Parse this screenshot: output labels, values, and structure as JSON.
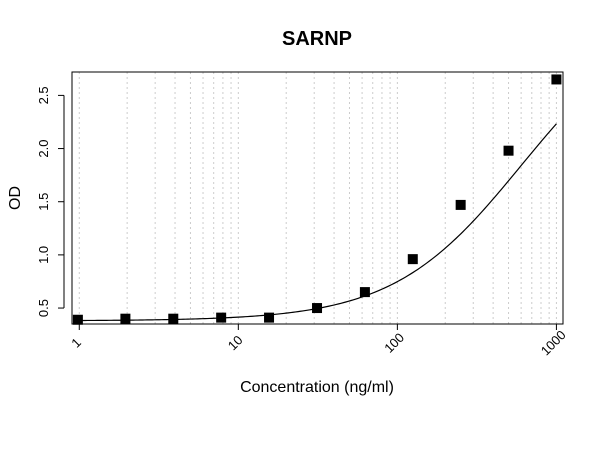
{
  "chart_data": {
    "type": "scatter",
    "title": "SARNP",
    "xlabel": "Concentration (ng/ml)",
    "ylabel": "OD",
    "x_scale": "log",
    "xlim": [
      0.9,
      1100
    ],
    "ylim": [
      0.35,
      2.72
    ],
    "x_ticks": [
      1,
      10,
      100,
      1000
    ],
    "x_tick_labels": [
      "1",
      "10",
      "100",
      "1000"
    ],
    "y_ticks": [
      0.5,
      1.0,
      1.5,
      2.0,
      2.5
    ],
    "y_tick_labels": [
      "0.5",
      "1.0",
      "1.5",
      "2.0",
      "2.5"
    ],
    "grid": "vertical dotted",
    "series": [
      {
        "marker": "filled-square",
        "x": [
          0.98,
          1.95,
          3.9,
          7.8,
          15.6,
          31.25,
          62.5,
          125,
          250,
          500,
          1000
        ],
        "y": [
          0.39,
          0.4,
          0.4,
          0.41,
          0.41,
          0.5,
          0.65,
          0.96,
          1.47,
          1.98,
          2.65
        ]
      }
    ],
    "fit": {
      "type": "4PL",
      "bottom": 0.38,
      "top": 3.3,
      "ec50": 600,
      "hill": 1.08
    }
  }
}
